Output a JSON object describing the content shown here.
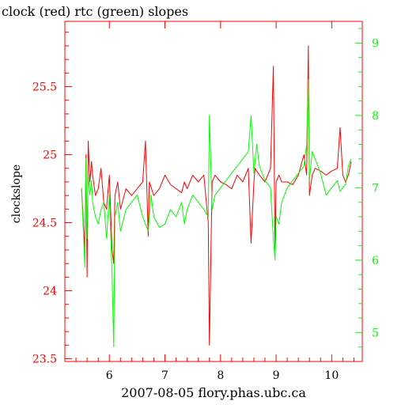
{
  "chart_data": {
    "type": "line",
    "title": "clock (red) rtc (green) slopes",
    "xlabel": "2007-08-05 flory.phas.ubc.ca",
    "ylabel": "clockslope",
    "colors": {
      "clock": "#ff0000",
      "rtc": "#00ff00",
      "frame": "#ff0000",
      "text": "#000000"
    },
    "xlim": [
      5.2,
      10.55
    ],
    "ylim_left": [
      23.48,
      25.98
    ],
    "ylim_right": [
      4.6,
      9.3
    ],
    "x_ticks": [
      "6",
      "7",
      "8",
      "9",
      "10"
    ],
    "y_left_ticks": [
      "23.5",
      "24",
      "24.5",
      "25",
      "25.5"
    ],
    "y_right_ticks": [
      "5",
      "6",
      "7",
      "8",
      "9"
    ],
    "series": [
      {
        "name": "clock",
        "axis": "left",
        "x": [
          5.5,
          5.56,
          5.58,
          5.6,
          5.62,
          5.65,
          5.68,
          5.7,
          5.75,
          5.8,
          5.85,
          5.9,
          5.95,
          6.0,
          6.05,
          6.08,
          6.1,
          6.15,
          6.2,
          6.3,
          6.4,
          6.5,
          6.6,
          6.65,
          6.7,
          6.72,
          6.8,
          6.9,
          7.0,
          7.1,
          7.2,
          7.3,
          7.35,
          7.4,
          7.5,
          7.6,
          7.7,
          7.78,
          7.8,
          7.85,
          7.9,
          8.0,
          8.1,
          8.2,
          8.3,
          8.4,
          8.5,
          8.55,
          8.6,
          8.62,
          8.7,
          8.8,
          8.9,
          8.95,
          8.98,
          9.0,
          9.05,
          9.1,
          9.2,
          9.3,
          9.4,
          9.5,
          9.55,
          9.58,
          9.6,
          9.65,
          9.7,
          9.8,
          9.9,
          10.0,
          10.1,
          10.15,
          10.2,
          10.25,
          10.3,
          10.35
        ],
        "values": [
          24.75,
          24.3,
          25.0,
          24.1,
          25.1,
          24.8,
          24.95,
          24.85,
          24.7,
          24.75,
          24.9,
          24.65,
          24.6,
          24.85,
          24.3,
          24.2,
          24.7,
          24.8,
          24.6,
          24.75,
          24.7,
          24.75,
          24.8,
          25.1,
          24.4,
          24.8,
          24.7,
          24.75,
          24.85,
          24.78,
          24.75,
          24.72,
          24.8,
          24.75,
          24.85,
          24.8,
          24.85,
          24.5,
          23.6,
          24.8,
          24.85,
          24.8,
          24.78,
          24.75,
          24.85,
          24.8,
          24.9,
          24.35,
          24.8,
          24.9,
          24.85,
          24.8,
          24.9,
          25.65,
          24.3,
          24.8,
          24.85,
          24.8,
          24.8,
          24.78,
          24.85,
          25.0,
          24.85,
          25.8,
          24.7,
          24.85,
          24.9,
          24.88,
          24.85,
          24.88,
          24.9,
          25.2,
          24.85,
          24.8,
          24.85,
          24.95
        ]
      },
      {
        "name": "rtc",
        "axis": "right",
        "x": [
          5.5,
          5.56,
          5.58,
          5.6,
          5.62,
          5.65,
          5.68,
          5.7,
          5.75,
          5.8,
          5.85,
          5.9,
          5.95,
          6.0,
          6.05,
          6.08,
          6.1,
          6.15,
          6.2,
          6.3,
          6.4,
          6.5,
          6.6,
          6.65,
          6.7,
          6.75,
          6.8,
          6.9,
          7.0,
          7.1,
          7.2,
          7.3,
          7.35,
          7.4,
          7.5,
          7.6,
          7.7,
          7.78,
          7.8,
          7.85,
          7.9,
          8.0,
          8.1,
          8.2,
          8.3,
          8.4,
          8.5,
          8.55,
          8.6,
          8.65,
          8.7,
          8.8,
          8.9,
          8.95,
          8.98,
          9.0,
          9.05,
          9.1,
          9.2,
          9.3,
          9.4,
          9.5,
          9.55,
          9.58,
          9.6,
          9.65,
          9.7,
          9.8,
          9.9,
          10.0,
          10.1,
          10.15,
          10.2,
          10.25,
          10.3,
          10.35
        ],
        "values": [
          7.0,
          5.9,
          7.4,
          6.3,
          7.2,
          6.9,
          7.1,
          6.8,
          6.6,
          6.5,
          6.7,
          6.8,
          6.3,
          6.9,
          5.8,
          4.8,
          6.6,
          6.8,
          6.4,
          6.7,
          6.8,
          6.9,
          6.6,
          6.5,
          6.4,
          6.9,
          6.6,
          6.45,
          6.5,
          6.7,
          6.6,
          6.8,
          6.5,
          6.7,
          6.9,
          6.8,
          6.7,
          6.6,
          8.0,
          6.7,
          6.9,
          7.0,
          7.1,
          7.2,
          7.3,
          7.4,
          7.5,
          8.0,
          7.2,
          7.6,
          7.3,
          7.1,
          7.0,
          6.3,
          6.0,
          6.6,
          6.5,
          6.8,
          7.0,
          7.1,
          7.2,
          7.3,
          7.6,
          8.5,
          7.1,
          7.5,
          7.4,
          7.2,
          6.9,
          7.0,
          7.1,
          6.95,
          7.0,
          7.05,
          7.3,
          7.4
        ]
      }
    ]
  }
}
